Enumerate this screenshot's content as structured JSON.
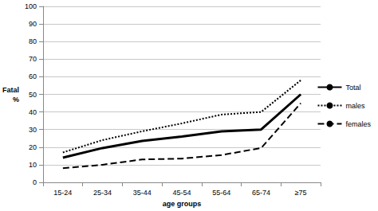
{
  "chart_data": {
    "type": "line",
    "x_label": "age groups",
    "y_label": "Fatal %",
    "categories": [
      "15-24",
      "25-34",
      "35-44",
      "45-54",
      "55-64",
      "65-74",
      "≥75"
    ],
    "series": [
      {
        "name": "Total",
        "color": "#000000",
        "line_style": "solid",
        "values": [
          14,
          19.5,
          23.5,
          26,
          29,
          30,
          50
        ]
      },
      {
        "name": "males",
        "color": "#000000",
        "line_style": "dotted",
        "values": [
          17,
          24,
          29,
          33.5,
          38.5,
          40,
          58
        ]
      },
      {
        "name": "females",
        "color": "#000000",
        "line_style": "dashed",
        "values": [
          8,
          10,
          13,
          13.5,
          15.5,
          19.5,
          45
        ]
      }
    ],
    "ylim": [
      0,
      100
    ],
    "yticks": [
      0,
      10,
      20,
      30,
      40,
      50,
      60,
      70,
      80,
      90,
      100
    ],
    "grid": true,
    "legend": "right"
  }
}
